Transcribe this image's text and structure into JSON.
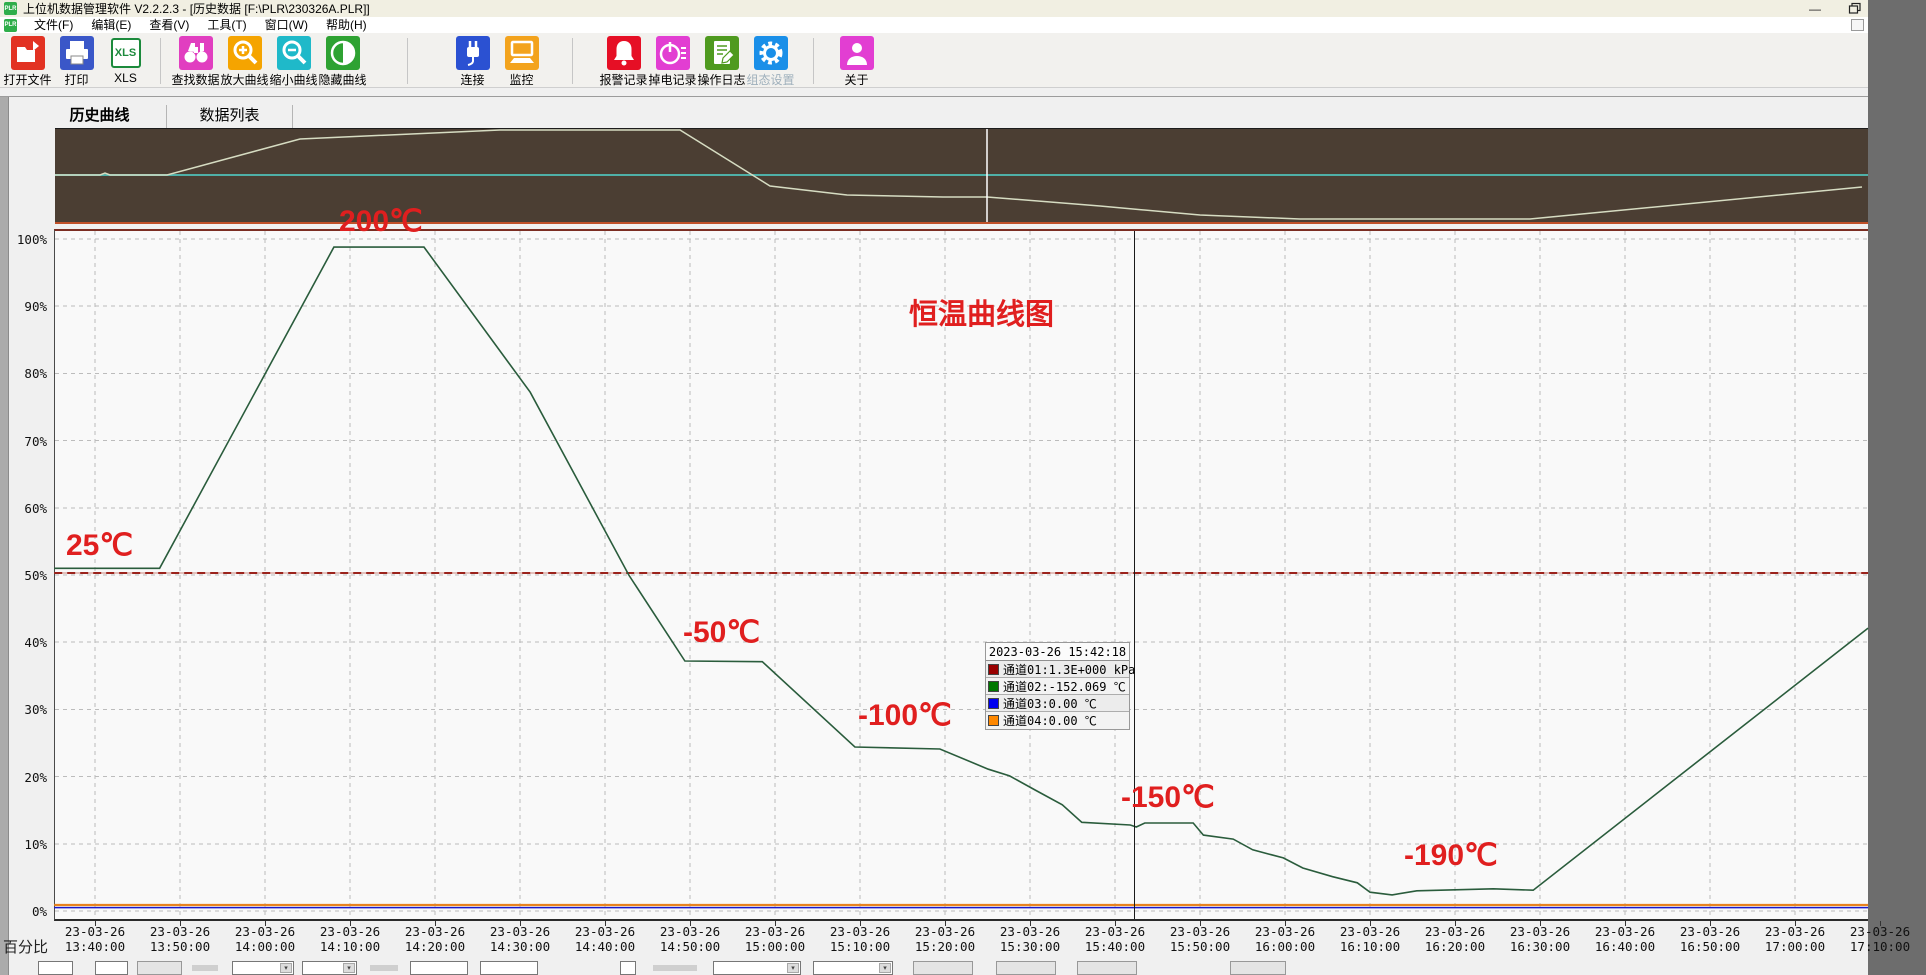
{
  "window": {
    "title": "上位机数据管理软件 V2.2.2.3 - [历史数据 [F:\\PLR\\230326A.PLR]]",
    "app_badge": "PLR",
    "minimize_glyph": "—"
  },
  "menu": {
    "items": [
      "文件(F)",
      "编辑(E)",
      "查看(V)",
      "工具(T)",
      "窗口(W)",
      "帮助(H)"
    ]
  },
  "toolbar": {
    "groups": [
      [
        {
          "label": "打开文件",
          "icon": "open-file-icon",
          "color": "#e23222"
        },
        {
          "label": "打印",
          "icon": "printer-icon",
          "color": "#3a57c8"
        },
        {
          "label": "XLS",
          "icon": "xls-icon",
          "color": "#ffffff"
        }
      ],
      [
        {
          "label": "查找数据",
          "icon": "binoculars-icon",
          "color": "#e13ec0"
        },
        {
          "label": "放大曲线",
          "icon": "zoom-in-icon",
          "color": "#f5a400"
        },
        {
          "label": "缩小曲线",
          "icon": "zoom-out-icon",
          "color": "#1fb9c9"
        },
        {
          "label": "隐藏曲线",
          "icon": "contrast-icon",
          "color": "#2ea232"
        }
      ],
      [
        {
          "label": "连接",
          "icon": "plug-icon",
          "color": "#2b51d2"
        },
        {
          "label": "监控",
          "icon": "monitor-icon",
          "color": "#f3a31d"
        }
      ],
      [
        {
          "label": "报警记录",
          "icon": "alarm-bell-icon",
          "color": "#e60f25"
        },
        {
          "label": "掉电记录",
          "icon": "power-icon",
          "color": "#e23ed2"
        },
        {
          "label": "操作日志",
          "icon": "log-edit-icon",
          "color": "#4f9a1f"
        },
        {
          "label": "组态设置",
          "icon": "gear-icon",
          "color": "#1a8fe8",
          "disabled": true
        }
      ],
      [
        {
          "label": "关于",
          "icon": "person-icon",
          "color": "#e23ed2"
        }
      ]
    ]
  },
  "tabs": [
    {
      "label": "历史曲线",
      "active": true
    },
    {
      "label": "数据列表",
      "active": false
    }
  ],
  "axis_unit_label": "百分比",
  "tooltip": {
    "timestamp": "2023-03-26 15:42:18",
    "rows": [
      {
        "color": "#990000",
        "text": "通道01:1.3E+000 kPa"
      },
      {
        "color": "#007700",
        "text": "通道02:-152.069 ℃"
      },
      {
        "color": "#0000ee",
        "text": "通道03:0.00 ℃"
      },
      {
        "color": "#ff8800",
        "text": "通道04:0.00 ℃"
      }
    ]
  },
  "chart_data": {
    "type": "line",
    "title": "恒温曲线图",
    "x_axis": {
      "date_label": "23-03-26",
      "start_time": "13:40:00",
      "interval_minutes": 10,
      "time_labels": [
        "13:40:00",
        "13:50:00",
        "14:00:00",
        "14:10:00",
        "14:20:00",
        "14:30:00",
        "14:40:00",
        "14:50:00",
        "15:00:00",
        "15:10:00",
        "15:20:00",
        "15:30:00",
        "15:40:00",
        "15:50:00",
        "16:00:00",
        "16:10:00",
        "16:20:00",
        "16:30:00",
        "16:40:00",
        "16:50:00",
        "17:00:00",
        "17:10:00"
      ]
    },
    "y_axis": {
      "labels": [
        "100%",
        "90%",
        "80%",
        "70%",
        "60%",
        "50%",
        "40%",
        "30%",
        "20%",
        "10%",
        "0%"
      ],
      "min": 0,
      "max": 100,
      "unit": "percent"
    },
    "grid": true,
    "legend_position": "cursor-tooltip",
    "cursor": {
      "label": "15:42:18",
      "minutes_from_start": 122.3
    },
    "series": [
      {
        "name": "通道01",
        "unit": "kPa",
        "value_at_cursor": "1.3E+000",
        "color": "#9b231c",
        "style": "dashed-flat",
        "points_min_pct": [
          [
            -4.8,
            50.3
          ],
          [
            208.6,
            50.3
          ]
        ]
      },
      {
        "name": "通道02",
        "unit": "℃",
        "value_at_cursor": "-152.069",
        "color": "#2a5c3c",
        "style": "solid",
        "points_min_pct": [
          [
            -4.8,
            51
          ],
          [
            7.6,
            51
          ],
          [
            28.1,
            98.8
          ],
          [
            38.7,
            98.8
          ],
          [
            51.2,
            77.2
          ],
          [
            62.8,
            50
          ],
          [
            69.4,
            37.2
          ],
          [
            78.5,
            37.1
          ],
          [
            89.4,
            24.4
          ],
          [
            99.4,
            24.1
          ],
          [
            105.1,
            21.1
          ],
          [
            107.6,
            20.1
          ],
          [
            110.6,
            18
          ],
          [
            113.8,
            15.8
          ],
          [
            116.1,
            13.2
          ],
          [
            121.8,
            12.8
          ],
          [
            122.5,
            12.5
          ],
          [
            123.5,
            13.1
          ],
          [
            129.2,
            13.1
          ],
          [
            130.4,
            11.3
          ],
          [
            133.9,
            10.7
          ],
          [
            136.2,
            9.1
          ],
          [
            139.8,
            7.9
          ],
          [
            142.1,
            6.4
          ],
          [
            145.6,
            5.1
          ],
          [
            148.5,
            4.2
          ],
          [
            150,
            2.8
          ],
          [
            152.6,
            2.4
          ],
          [
            155.5,
            3
          ],
          [
            164.5,
            3.3
          ],
          [
            169.2,
            3.1
          ],
          [
            208.6,
            42.1
          ]
        ]
      },
      {
        "name": "通道03",
        "unit": "℃",
        "value_at_cursor": "0.00",
        "color": "#1a1acc",
        "style": "solid-flat",
        "points_min_pct": [
          [
            -4.8,
            0.5
          ],
          [
            208.6,
            0.5
          ]
        ]
      },
      {
        "name": "通道04",
        "unit": "℃",
        "value_at_cursor": "0.00",
        "color": "#e8821e",
        "style": "solid-flat",
        "points_min_pct": [
          [
            -4.8,
            0.9
          ],
          [
            208.6,
            0.9
          ]
        ]
      }
    ],
    "annotations": [
      {
        "text": "200℃",
        "x": 339,
        "y": 204
      },
      {
        "text": "25℃",
        "x": 66,
        "y": 528
      },
      {
        "text": "-50℃",
        "x": 683,
        "y": 615
      },
      {
        "text": "-100℃",
        "x": 858,
        "y": 698
      },
      {
        "text": "-150℃",
        "x": 1121,
        "y": 780
      },
      {
        "text": "-190℃",
        "x": 1404,
        "y": 838
      }
    ],
    "overview": {
      "teal_line_y": 46,
      "indicator_x": 932,
      "curve_points": [
        [
          0,
          46
        ],
        [
          45,
          46
        ],
        [
          50,
          44
        ],
        [
          55,
          46
        ],
        [
          112,
          46
        ],
        [
          245,
          10
        ],
        [
          445,
          1
        ],
        [
          625,
          1
        ],
        [
          715,
          57
        ],
        [
          792,
          66
        ],
        [
          888,
          68
        ],
        [
          932,
          68
        ],
        [
          1045,
          77
        ],
        [
          1145,
          86
        ],
        [
          1245,
          90
        ],
        [
          1475,
          90
        ],
        [
          1807,
          58
        ]
      ]
    }
  }
}
